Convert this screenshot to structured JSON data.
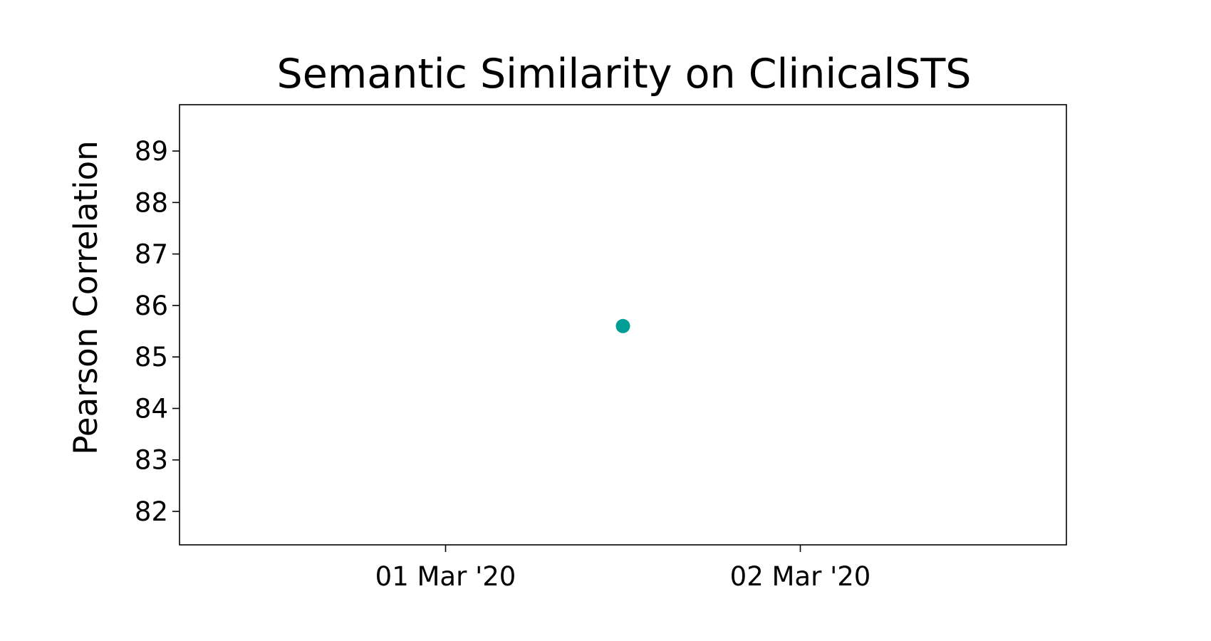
{
  "chart_data": {
    "type": "scatter",
    "title": "Semantic Similarity on ClinicalSTS",
    "xlabel": "",
    "ylabel": "Pearson Correlation",
    "x_axis_type": "date",
    "x_ticks": [
      "2020-03-01",
      "2020-03-02"
    ],
    "x_tick_labels": [
      "01 Mar '20",
      "02 Mar '20"
    ],
    "xlim": [
      "2020-02-29T06:00",
      "2020-03-02T18:00"
    ],
    "y_ticks": [
      82,
      83,
      84,
      85,
      86,
      87,
      88,
      89
    ],
    "ylim": [
      81.35,
      89.9
    ],
    "grid": false,
    "legend": "none",
    "marker_color": "#009e96",
    "series": [
      {
        "points": [
          {
            "x": "2020-03-01T12:00",
            "y": 85.6
          }
        ]
      }
    ]
  }
}
